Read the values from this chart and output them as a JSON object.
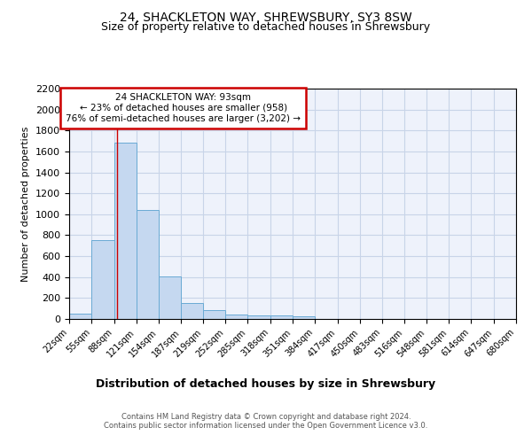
{
  "title": "24, SHACKLETON WAY, SHREWSBURY, SY3 8SW",
  "subtitle": "Size of property relative to detached houses in Shrewsbury",
  "xlabel": "Distribution of detached houses by size in Shrewsbury",
  "ylabel": "Number of detached properties",
  "bin_edges": [
    22,
    55,
    88,
    121,
    154,
    187,
    219,
    252,
    285,
    318,
    351,
    384,
    417,
    450,
    483,
    516,
    548,
    581,
    614,
    647,
    680
  ],
  "bar_heights": [
    50,
    750,
    1680,
    1040,
    410,
    150,
    85,
    45,
    35,
    30,
    25,
    0,
    0,
    0,
    0,
    0,
    0,
    0,
    0,
    0
  ],
  "bar_color": "#c5d8f0",
  "bar_edge_color": "#6aaad4",
  "grid_color": "#c8d4e8",
  "property_size": 93,
  "vline_color": "#cc0000",
  "annotation_line1": "24 SHACKLETON WAY: 93sqm",
  "annotation_line2": "← 23% of detached houses are smaller (958)",
  "annotation_line3": "76% of semi-detached houses are larger (3,202) →",
  "annotation_box_color": "#cc0000",
  "ylim": [
    0,
    2200
  ],
  "yticks": [
    0,
    200,
    400,
    600,
    800,
    1000,
    1200,
    1400,
    1600,
    1800,
    2000,
    2200
  ],
  "footer_text": "Contains HM Land Registry data © Crown copyright and database right 2024.\nContains public sector information licensed under the Open Government Licence v3.0.",
  "background_color": "#eef2fb",
  "title_fontsize": 10,
  "subtitle_fontsize": 9,
  "ylabel_fontsize": 8,
  "xlabel_fontsize": 9
}
